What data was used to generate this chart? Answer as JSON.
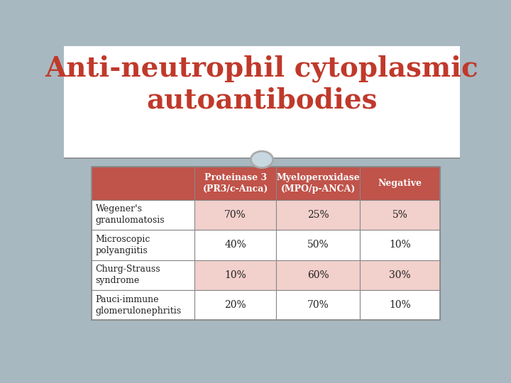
{
  "title_line1": "Anti-neutrophil cytoplasmic",
  "title_line2": "autoantibodies",
  "title_color": "#c0392b",
  "title_fontsize": 28,
  "title_font": "serif",
  "background_color": "#a8b8c0",
  "slide_bg": "#ffffff",
  "table_bg_light": "#f2d0cc",
  "table_bg_header": "#c0534a",
  "table_header_text_color": "#ffffff",
  "table_border_color": "#888888",
  "col_headers": [
    "Proteinase 3\n(PR3/c-Anca)",
    "Myeloperoxidase\n(MPO/p-ANCA)",
    "Negative"
  ],
  "row_labels": [
    "Wegener's\ngranulomatosis",
    "Microscopic\npolyangiitis",
    "Churg-Strauss\nsyndrome",
    "Pauci-immune\nglomerulonephritis"
  ],
  "data": [
    [
      "70%",
      "25%",
      "5%"
    ],
    [
      "40%",
      "50%",
      "10%"
    ],
    [
      "10%",
      "60%",
      "30%"
    ],
    [
      "20%",
      "70%",
      "10%"
    ]
  ],
  "circle_color": "#c8d8e0",
  "circle_border": "#aaaaaa"
}
